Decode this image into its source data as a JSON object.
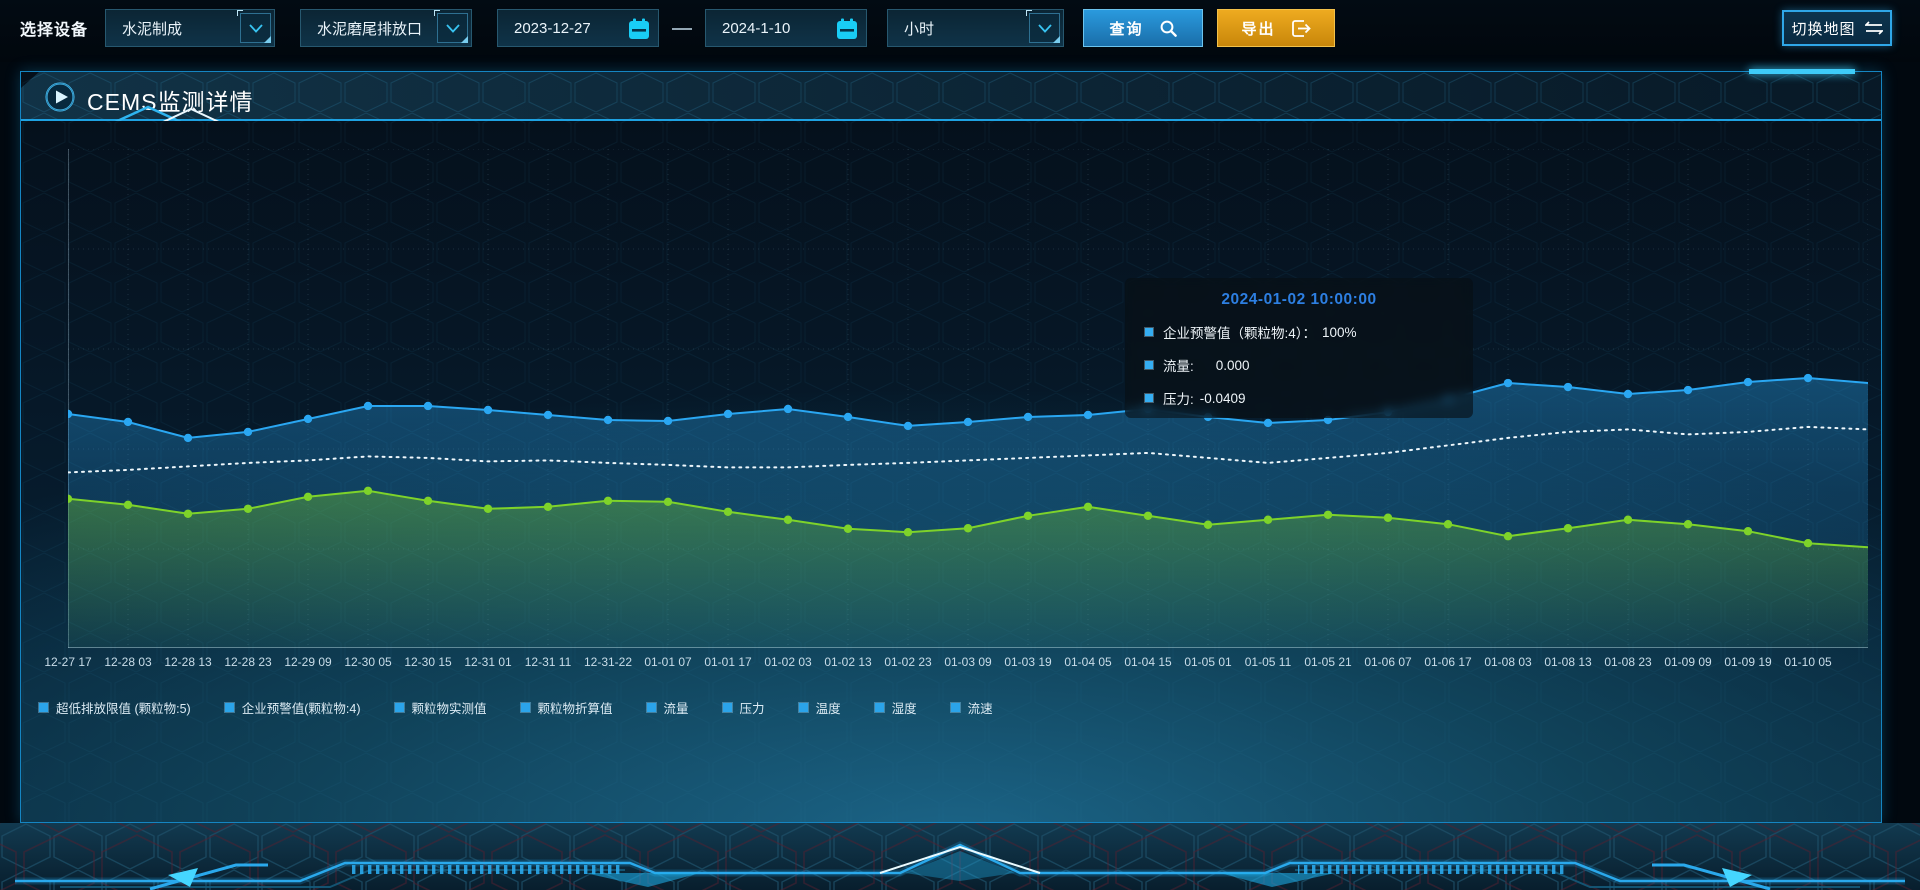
{
  "toolbar": {
    "device_label": "选择设备",
    "device_select": {
      "value": "水泥制成"
    },
    "outlet_select": {
      "value": "水泥磨尾排放口"
    },
    "date_start": "2023-12-27",
    "date_end": "2024-1-10",
    "interval_select": {
      "value": "小时"
    },
    "query_button": "查询",
    "export_button": "导出",
    "switch_map_button": "切换地图"
  },
  "panel": {
    "title": "CEMS监测详情"
  },
  "tooltip": {
    "title": "2024-01-02 10:00:00",
    "items": [
      {
        "label": "企业预警值（颗粒物:4）：",
        "value": "100%"
      },
      {
        "label": "流量:",
        "value": "0.000"
      },
      {
        "label": "压力:",
        "value": "-0.0409"
      }
    ]
  },
  "chart_data": {
    "type": "line",
    "title": "",
    "xlabel": "",
    "ylabel": "",
    "grid": true,
    "y_axis_labels_visible": false,
    "legend_position": "bottom",
    "x_labels": [
      "12-27 17",
      "12-28 03",
      "12-28 13",
      "12-28 23",
      "12-29 09",
      "12-30 05",
      "12-30 15",
      "12-31 01",
      "12-31 11",
      "12-31-22",
      "01-01 07",
      "01-01 17",
      "01-02 03",
      "01-02 13",
      "01-02 23",
      "01-03 09",
      "01-03 19",
      "01-04 05",
      "01-04 15",
      "01-05 01",
      "01-05 11",
      "01-05 21",
      "01-06 07",
      "01-06 17",
      "01-08 03",
      "01-08 13",
      "01-08 23",
      "01-09 09",
      "01-09 19",
      "01-10 05"
    ],
    "series": [
      {
        "name": "blue-line",
        "color": "#2aa7f2",
        "style": "solid",
        "marker": true,
        "area": true,
        "y_pct_from_top": [
          53.1,
          54.7,
          57.9,
          56.7,
          54.1,
          51.5,
          51.5,
          52.3,
          53.3,
          54.3,
          54.5,
          53.1,
          52.1,
          53.7,
          55.5,
          54.7,
          53.7,
          53.3,
          52.1,
          53.7,
          54.9,
          54.3,
          52.7,
          50.1,
          46.9,
          47.7,
          49.1,
          48.3,
          46.7,
          45.9,
          46.9
        ]
      },
      {
        "name": "white-dotted-line",
        "color": "#eef7fc",
        "style": "dotted",
        "marker": false,
        "area": false,
        "y_pct_from_top": [
          64.8,
          64.3,
          63.6,
          62.9,
          62.4,
          61.6,
          61.9,
          62.6,
          62.4,
          62.9,
          63.3,
          63.8,
          63.8,
          63.3,
          62.9,
          62.4,
          61.9,
          61.4,
          60.9,
          61.9,
          62.9,
          61.9,
          60.9,
          59.4,
          57.9,
          56.7,
          56.2,
          57.2,
          56.7,
          55.7,
          56.2
        ]
      },
      {
        "name": "green-line",
        "color": "#7ed32a",
        "style": "solid",
        "marker": true,
        "area": true,
        "y_pct_from_top": [
          70.1,
          71.3,
          73.1,
          72.1,
          69.7,
          68.5,
          70.5,
          72.1,
          71.7,
          70.5,
          70.7,
          72.7,
          74.3,
          76.1,
          76.8,
          76.0,
          73.5,
          71.7,
          73.5,
          75.3,
          74.3,
          73.3,
          73.9,
          75.2,
          77.6,
          76.0,
          74.3,
          75.2,
          76.6,
          79.0,
          79.8
        ]
      }
    ],
    "legend": [
      "超低排放限值 (颗粒物:5)",
      "企业预警值(颗粒物:4)",
      "颗粒物实测值",
      "颗粒物折算值",
      "流量",
      "压力",
      "温度",
      "湿度",
      "流速"
    ]
  }
}
